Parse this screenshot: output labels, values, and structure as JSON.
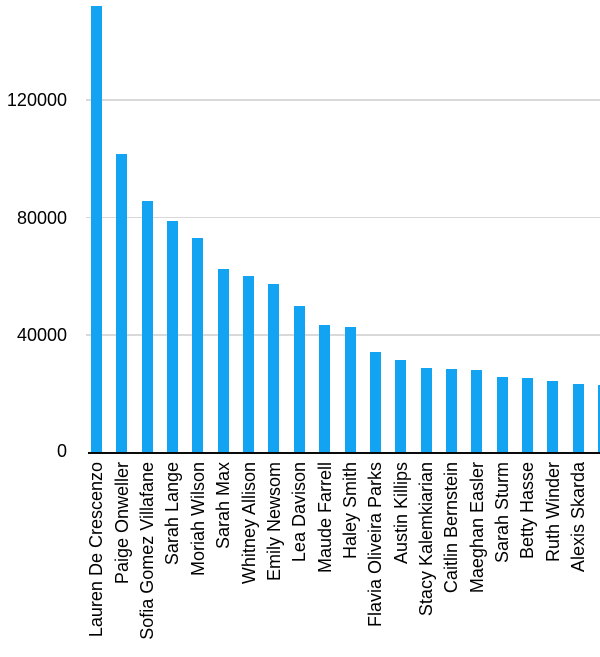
{
  "chart_data": {
    "type": "bar",
    "title": "",
    "xlabel": "",
    "ylabel": "",
    "categories": [
      "Lauren De Crescenzo",
      "Paige Onweller",
      "Sofia Gomez Villafane",
      "Sarah Lange",
      "Moriah Wilson",
      "Sarah Max",
      "Whitney Allison",
      "Emily Newsom",
      "Lea Davison",
      "Maude Farrell",
      "Haley Smith",
      "Flavia Oliveira Parks",
      "Austin Killips",
      "Stacy Kalemkiarian",
      "Caitlin Bernstein",
      "Maeghan Easler",
      "Sarah Sturm",
      "Betty Hasse",
      "Ruth Winder",
      "Alexis Skarda"
    ],
    "values": [
      152000,
      101500,
      85700,
      78900,
      73000,
      62300,
      60200,
      57300,
      50000,
      43300,
      42700,
      34100,
      31400,
      28800,
      28500,
      28000,
      25800,
      25400,
      24300,
      23400
    ],
    "partial_bar_value_clipped_at_right_edge": 23000,
    "yticks": [
      0,
      40000,
      80000,
      120000
    ],
    "ytick_labels": [
      "0",
      "40000",
      "80000",
      "120000"
    ],
    "ylim": [
      0,
      154000
    ],
    "grid": "horizontal",
    "legend": "none",
    "colors": {
      "bar": "#12A3F3",
      "gridline": "#D9D9D9",
      "axis": "#0A0A0A",
      "text": "#000000",
      "background": "#FFFFFF"
    }
  }
}
